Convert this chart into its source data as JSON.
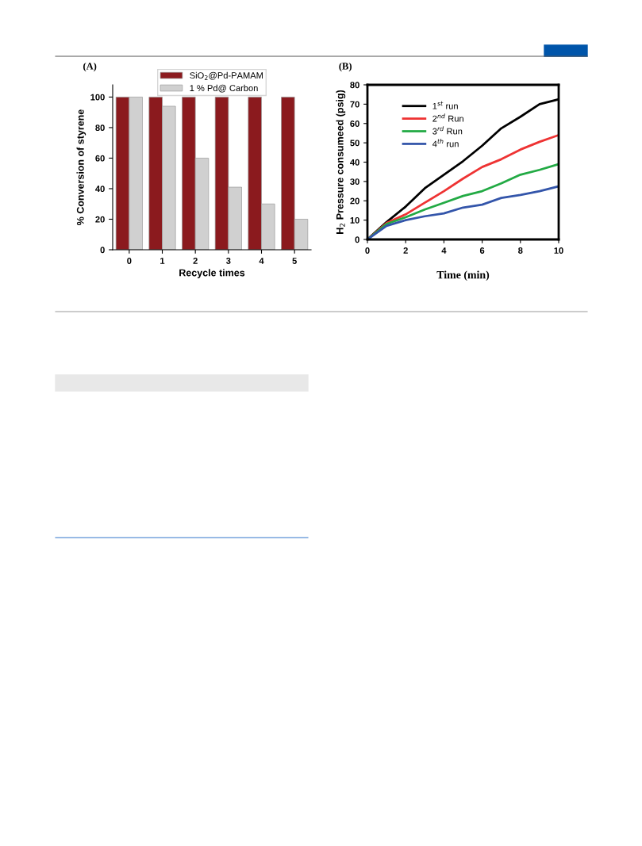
{
  "chart_data": [
    {
      "type": "bar",
      "title": "(A)",
      "xlabel": "Recycle times",
      "ylabel": "% Conversion of styrene",
      "categories": [
        "0",
        "1",
        "2",
        "3",
        "4",
        "5"
      ],
      "series": [
        {
          "name": "SiO$_{2}$@Pd-PAMAM",
          "color": "#8b1a1e",
          "values": [
            100,
            100,
            100,
            100,
            100,
            100
          ]
        },
        {
          "name": "1 % Pd@ Carbon",
          "color": "#d0d0d0",
          "values": [
            100,
            94,
            60,
            41,
            30,
            20
          ]
        }
      ],
      "ylim": [
        0,
        108
      ],
      "yticks": [
        0,
        20,
        40,
        60,
        80,
        100
      ],
      "legend": "top",
      "grid": false
    },
    {
      "type": "line",
      "title": "(B)",
      "xlabel": "Time (min)",
      "ylabel": "H$_{2}$ Pressure consumeed (psig)",
      "x": [
        0,
        1,
        2,
        3,
        4,
        5,
        6,
        7,
        8,
        9,
        10
      ],
      "series": [
        {
          "name": "1$^{st}$ run",
          "color": "#000000",
          "values": [
            0,
            9,
            17,
            26.5,
            33.5,
            40.5,
            48.5,
            57.5,
            63.5,
            70,
            72.5
          ]
        },
        {
          "name": "2$^{nd}$ Run",
          "color": "#ee3333",
          "values": [
            0,
            8.5,
            13,
            19,
            25,
            31.5,
            37.5,
            41.5,
            46.5,
            50.5,
            54
          ]
        },
        {
          "name": "3$^{rd}$ Run",
          "color": "#22aa44",
          "values": [
            0,
            8,
            11.5,
            15.5,
            19,
            22.5,
            25,
            29,
            33.5,
            36,
            39
          ]
        },
        {
          "name": "4$^{th}$ run",
          "color": "#3355aa",
          "values": [
            0,
            7,
            10,
            12,
            13.5,
            16.5,
            18,
            21.5,
            23,
            25,
            27.5
          ]
        }
      ],
      "xlim": [
        0,
        10
      ],
      "xticks": [
        0,
        2,
        4,
        6,
        8,
        10
      ],
      "ylim": [
        0,
        80
      ],
      "yticks": [
        0,
        10,
        20,
        30,
        40,
        50,
        60,
        70,
        80
      ],
      "legend": "top left",
      "grid": false,
      "marker": "none",
      "line_style": "solid"
    }
  ]
}
